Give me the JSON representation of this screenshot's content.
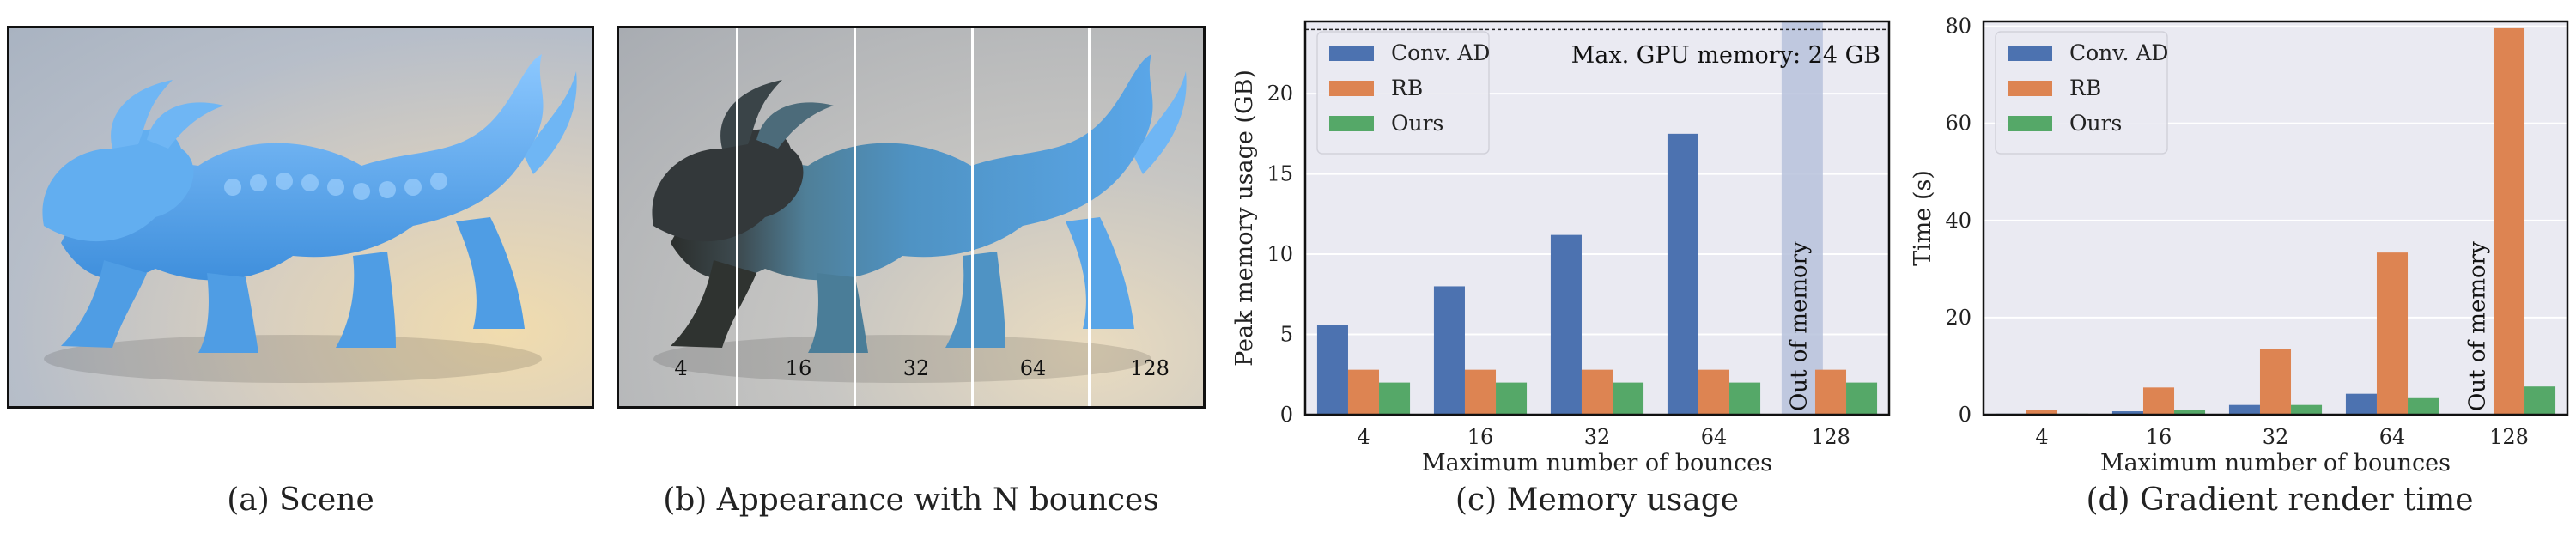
{
  "captions": {
    "a": "(a) Scene",
    "b": "(b) Appearance with N bounces",
    "c": "(c) Memory usage",
    "d": "(d) Gradient render time"
  },
  "bounce_labels": [
    "4",
    "16",
    "32",
    "64",
    "128"
  ],
  "colors": {
    "conv_ad": "#4c72b0",
    "rb": "#dd8452",
    "ours": "#55a868",
    "plot_bg": "#eaeaf2",
    "dragon": "#5aa6e8",
    "dragon_dark": "#2f3330",
    "oom_band": "#b7c2dc"
  },
  "chart_data": [
    {
      "type": "bar",
      "categories": [
        "4",
        "16",
        "32",
        "64",
        "128"
      ],
      "series": [
        {
          "name": "Conv. AD",
          "values": [
            5.6,
            8.0,
            11.2,
            17.5,
            null
          ]
        },
        {
          "name": "RB",
          "values": [
            2.8,
            2.8,
            2.8,
            2.8,
            2.8
          ]
        },
        {
          "name": "Ours",
          "values": [
            2.0,
            2.0,
            2.0,
            2.0,
            2.0
          ]
        }
      ],
      "xlabel": "Maximum number of bounces",
      "ylabel": "Peak memory usage (GB)",
      "ylim": [
        0,
        24.5
      ],
      "yticks": [
        0,
        5,
        10,
        15,
        20
      ],
      "grid": true,
      "legend_position": "top-left",
      "annotations": {
        "max_memory_label": "Max. GPU memory: 24 GB",
        "max_memory_value": 24,
        "oom_label": "Out of memory",
        "oom_category": "128"
      }
    },
    {
      "type": "bar",
      "categories": [
        "4",
        "16",
        "32",
        "64",
        "128"
      ],
      "series": [
        {
          "name": "Conv. AD",
          "values": [
            0.2,
            0.7,
            2.0,
            4.3,
            null
          ]
        },
        {
          "name": "RB",
          "values": [
            1.0,
            5.6,
            13.6,
            33.4,
            79.6
          ]
        },
        {
          "name": "Ours",
          "values": [
            0.2,
            1.0,
            2.0,
            3.4,
            5.8
          ]
        }
      ],
      "xlabel": "Maximum number of bounces",
      "ylabel": "Time (s)",
      "ylim": [
        0,
        81
      ],
      "yticks": [
        0,
        20,
        40,
        60,
        80
      ],
      "grid": true,
      "legend_position": "top-left",
      "annotations": {
        "oom_label": "Out of memory",
        "oom_category": "128"
      }
    }
  ]
}
